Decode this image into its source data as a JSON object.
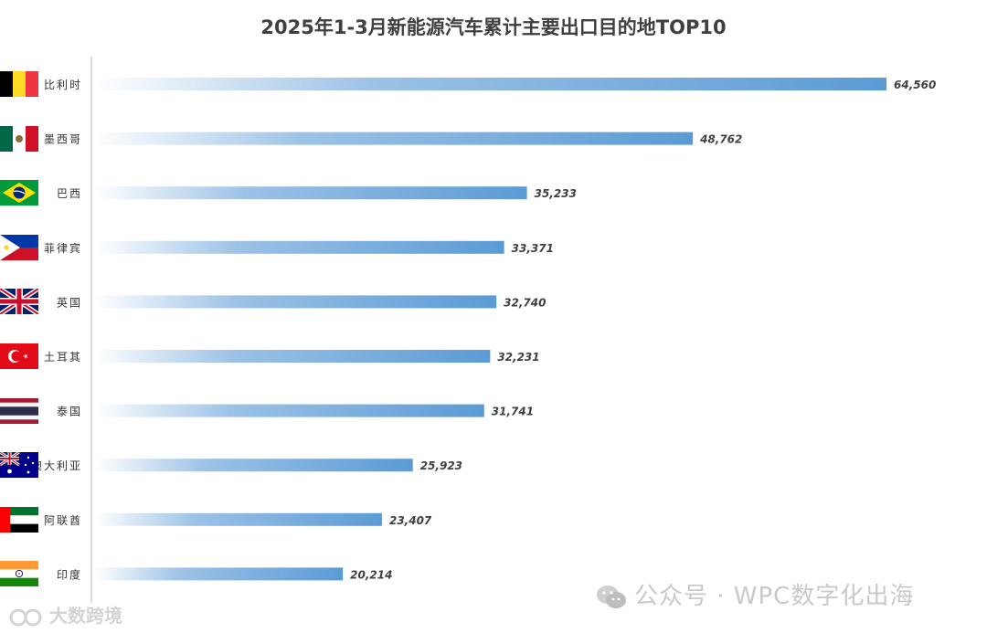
{
  "chart_data": {
    "type": "bar",
    "orientation": "horizontal",
    "title": "2025年1-3月新能源汽车累计主要出口目的地TOP10",
    "categories": [
      "比利时",
      "墨西哥",
      "巴西",
      "菲律宾",
      "英国",
      "土耳其",
      "泰国",
      "澳大利亚",
      "阿联酋",
      "印度"
    ],
    "values": [
      64560,
      48762,
      35233,
      33371,
      32740,
      32231,
      31741,
      25923,
      23407,
      20214
    ],
    "value_labels": [
      "64,560",
      "48,762",
      "35,233",
      "33,371",
      "32,740",
      "32,231",
      "31,741",
      "25,923",
      "23,407",
      "20,214"
    ],
    "flag_icons": [
      "belgium-flag-icon",
      "mexico-flag-icon",
      "brazil-flag-icon",
      "philippines-flag-icon",
      "uk-flag-icon",
      "turkey-flag-icon",
      "thailand-flag-icon",
      "australia-flag-icon",
      "uae-flag-icon",
      "india-flag-icon"
    ],
    "xlim": [
      0,
      64560
    ],
    "grid": false,
    "bar_color": "#5b9bd5",
    "bar_gradient_start": "#ffffff"
  },
  "watermarks": {
    "right": "公众号 · WPC数字化出海",
    "left": "大数跨境"
  }
}
